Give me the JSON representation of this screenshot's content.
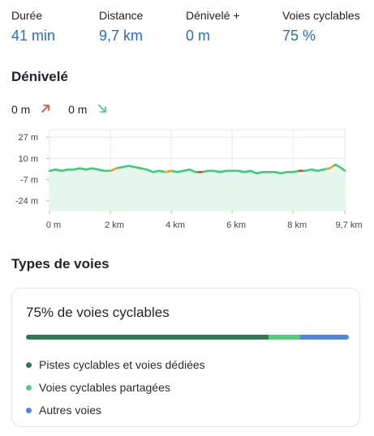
{
  "stats": [
    {
      "label": "Durée",
      "value": "41 min"
    },
    {
      "label": "Distance",
      "value": "9,7 km"
    },
    {
      "label": "Dénivelé +",
      "value": "0 m"
    },
    {
      "label": "Voies cyclables",
      "value": "75 %"
    }
  ],
  "elevation": {
    "title": "Dénivelé",
    "ascent": "0 m",
    "descent": "0 m"
  },
  "chart_data": {
    "type": "line",
    "x": [
      0,
      0.2,
      0.4,
      0.6,
      0.8,
      1.0,
      1.2,
      1.4,
      1.6,
      1.8,
      2.0,
      2.2,
      2.4,
      2.6,
      2.8,
      3.0,
      3.2,
      3.4,
      3.6,
      3.8,
      4.0,
      4.2,
      4.4,
      4.6,
      4.8,
      5.0,
      5.2,
      5.4,
      5.6,
      5.8,
      6.0,
      6.2,
      6.4,
      6.6,
      6.8,
      7.0,
      7.2,
      7.4,
      7.6,
      7.8,
      8.0,
      8.2,
      8.4,
      8.6,
      8.8,
      9.0,
      9.2,
      9.4,
      9.6,
      9.7
    ],
    "y": [
      0,
      1,
      0,
      1,
      1,
      2,
      1,
      2,
      1,
      0,
      0,
      2,
      3,
      4,
      3,
      2,
      1,
      -1,
      0,
      -1,
      0,
      -1,
      0,
      1,
      -1,
      -1,
      0,
      0,
      -1,
      0,
      0,
      0,
      -1,
      0,
      -2,
      -1,
      -1,
      -1,
      -2,
      -1,
      -1,
      0,
      0,
      1,
      0,
      1,
      2,
      5,
      2,
      0
    ],
    "y_tick_labels": [
      "27 m",
      "10 m",
      "-7 m",
      "-24 m"
    ],
    "y_ticks": [
      27,
      10,
      -7,
      -24
    ],
    "x_tick_labels": [
      "0 m",
      "2 km",
      "4 km",
      "6 km",
      "8 km",
      "9,7 km"
    ],
    "x_ticks": [
      0,
      2,
      4,
      6,
      8,
      9.7
    ],
    "xlim": [
      0,
      9.7
    ],
    "ylim": [
      -32,
      33
    ],
    "grid": true,
    "line_color": "#3ecb7c",
    "fill_color": "#e5f6ec",
    "climb_segments": [
      {
        "x0": 2.0,
        "x1": 2.2,
        "color": "#f0a33a"
      },
      {
        "x0": 3.8,
        "x1": 4.0,
        "color": "#f0a33a"
      },
      {
        "x0": 4.9,
        "x1": 5.0,
        "color": "#e0433a"
      },
      {
        "x0": 8.2,
        "x1": 8.3,
        "color": "#e0433a"
      },
      {
        "x0": 9.1,
        "x1": 9.3,
        "color": "#f0a33a"
      }
    ]
  },
  "road_types": {
    "title": "Types de voies",
    "card_title": "75% de voies cyclables",
    "segments": [
      {
        "value": 75,
        "color": "#2f7a4f"
      },
      {
        "value": 10,
        "color": "#57cc80"
      },
      {
        "value": 15,
        "color": "#4f86e0"
      }
    ],
    "legend": [
      {
        "label": "Pistes cyclables et voies dédiées",
        "color": "#2f7a4f"
      },
      {
        "label": "Voies cyclables partagées",
        "color": "#57cc80"
      },
      {
        "label": "Autres voies",
        "color": "#4f86e0"
      }
    ]
  }
}
